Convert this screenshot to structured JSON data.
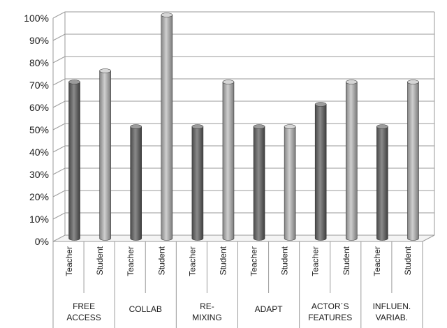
{
  "chart_data": {
    "type": "bar",
    "style": "3d-cylinder",
    "categories": [
      "FREE\nACCESS",
      "COLLAB",
      "RE-\nMIXING",
      "ADAPT",
      "ACTOR´S\nFEATURES",
      "INFLUEN.\nVARIAB."
    ],
    "sub_categories": [
      "Teacher",
      "Student"
    ],
    "values": [
      [
        70,
        75
      ],
      [
        50,
        100
      ],
      [
        50,
        70
      ],
      [
        50,
        50
      ],
      [
        60,
        70
      ],
      [
        50,
        70
      ]
    ],
    "y_ticks": [
      "0%",
      "10%",
      "20%",
      "30%",
      "40%",
      "50%",
      "60%",
      "70%",
      "80%",
      "90%",
      "100%"
    ],
    "ylim": [
      0,
      100
    ],
    "grid": true,
    "legend": "none",
    "colors": {
      "teacher": "#6e6e6e",
      "student": "#a8a8a8"
    }
  }
}
